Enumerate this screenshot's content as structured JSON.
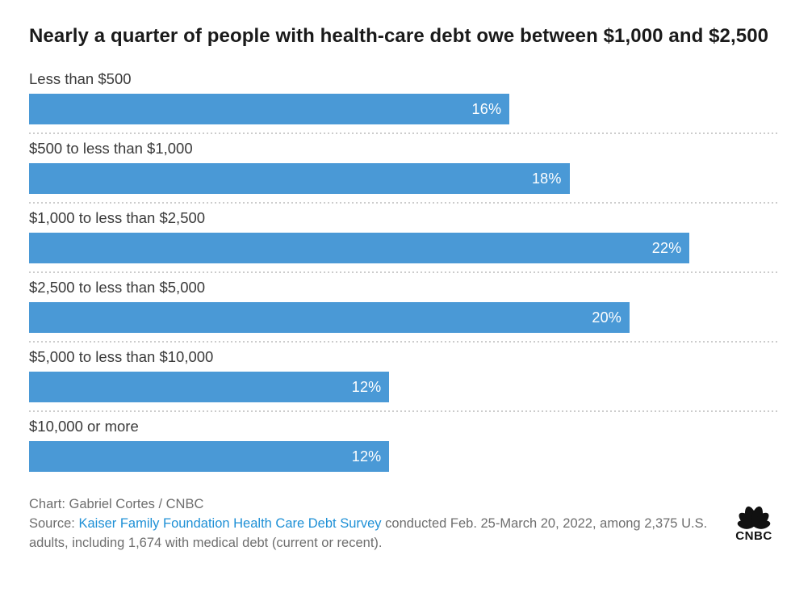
{
  "title": "Nearly a quarter of people with health-care debt owe between $1,000 and $2,500",
  "chart_data": {
    "type": "bar",
    "orientation": "horizontal",
    "title": "Nearly a quarter of people with health-care debt owe between $1,000 and $2,500",
    "categories": [
      "Less than $500",
      "$500 to less than $1,000",
      "$1,000 to less than $2,500",
      "$2,500 to less than $5,000",
      "$5,000 to less than $10,000",
      "$10,000 or more"
    ],
    "values": [
      16,
      18,
      22,
      20,
      12,
      12
    ],
    "value_labels": [
      "16%",
      "18%",
      "22%",
      "20%",
      "12%",
      "12%"
    ],
    "unit": "%",
    "xlim": [
      0,
      25
    ],
    "grid": false,
    "legend": false,
    "bar_color": "#4a99d6",
    "value_label_color": "#ffffff",
    "category_label_color": "#3a3a3a",
    "separator_style": "dotted"
  },
  "footer": {
    "credit": "Chart: Gabriel Cortes / CNBC",
    "source_prefix": "Source:",
    "source_link": "Kaiser Family Foundation Health Care Debt Survey",
    "source_suffix": "conducted Feb. 25-March 20, 2022, among 2,375 U.S. adults, including 1,674 with medical debt (current or recent).",
    "text_color": "#6e6e6e",
    "link_color": "#1e90d6"
  },
  "logo": {
    "name": "CNBC peacock logo",
    "label": "CNBC",
    "color": "#111111"
  }
}
